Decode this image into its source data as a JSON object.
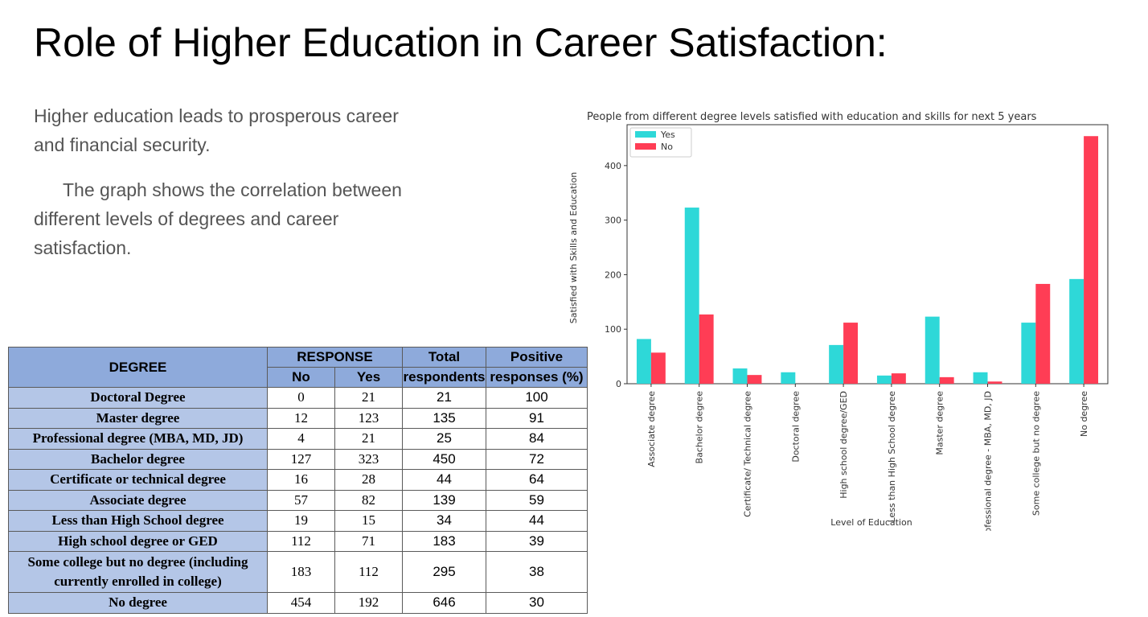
{
  "slide": {
    "title": "Role of Higher Education in Career Satisfaction:",
    "paragraph1": "Higher education leads to prosperous career and financial security.",
    "paragraph2": "The graph shows the correlation between different levels of degrees and career satisfaction."
  },
  "table": {
    "headers": {
      "degree": "DEGREE",
      "response": "RESPONSE",
      "no": "No",
      "yes": "Yes",
      "total": "Total",
      "total2": "respondents",
      "positive": "Positive",
      "positive2": "responses (%)"
    },
    "rows": [
      {
        "degree": "Doctoral Degree",
        "no": "0",
        "yes": "21",
        "total": "21",
        "positive": "100"
      },
      {
        "degree": "Master degree",
        "no": "12",
        "yes": "123",
        "total": "135",
        "positive": "91"
      },
      {
        "degree": "Professional degree (MBA, MD, JD)",
        "no": "4",
        "yes": "21",
        "total": "25",
        "positive": "84"
      },
      {
        "degree": "Bachelor degree",
        "no": "127",
        "yes": "323",
        "total": "450",
        "positive": "72"
      },
      {
        "degree": "Certificate or technical degree",
        "no": "16",
        "yes": "28",
        "total": "44",
        "positive": "64"
      },
      {
        "degree": "Associate degree",
        "no": "57",
        "yes": "82",
        "total": "139",
        "positive": "59"
      },
      {
        "degree": "Less than High School degree",
        "no": "19",
        "yes": "15",
        "total": "34",
        "positive": "44"
      },
      {
        "degree": "High school degree or GED",
        "no": "112",
        "yes": "71",
        "total": "183",
        "positive": "39"
      },
      {
        "degree": "Some college but no degree (including currently enrolled in college)",
        "no": "183",
        "yes": "112",
        "total": "295",
        "positive": "38"
      },
      {
        "degree": "No degree",
        "no": "454",
        "yes": "192",
        "total": "646",
        "positive": "30"
      }
    ]
  },
  "chart_data": {
    "type": "bar",
    "title": "People from different degree levels satisfied with education and skills for next 5 years",
    "xlabel": "Level of Education",
    "ylabel": "Satisfied with Skills and Education",
    "categories": [
      "Associate degree",
      "Bachelor degree",
      "Certificate/ Technical degree",
      "Doctoral degree",
      "High school degree/GED",
      "Less than High School degree",
      "Master degree",
      "Professional degree - MBA, MD, JD",
      "Some college but no degree",
      "No degree"
    ],
    "series": [
      {
        "name": "Yes",
        "values": [
          82,
          323,
          28,
          21,
          71,
          15,
          123,
          21,
          112,
          192
        ],
        "color": "#2ed8d8"
      },
      {
        "name": "No",
        "values": [
          57,
          127,
          16,
          0,
          112,
          19,
          12,
          4,
          183,
          454
        ],
        "color": "#ff3d55"
      }
    ],
    "ylim": [
      0,
      475
    ],
    "yticks": [
      "0",
      "100",
      "200",
      "300",
      "400"
    ],
    "legend": "top-left",
    "grid": false
  }
}
